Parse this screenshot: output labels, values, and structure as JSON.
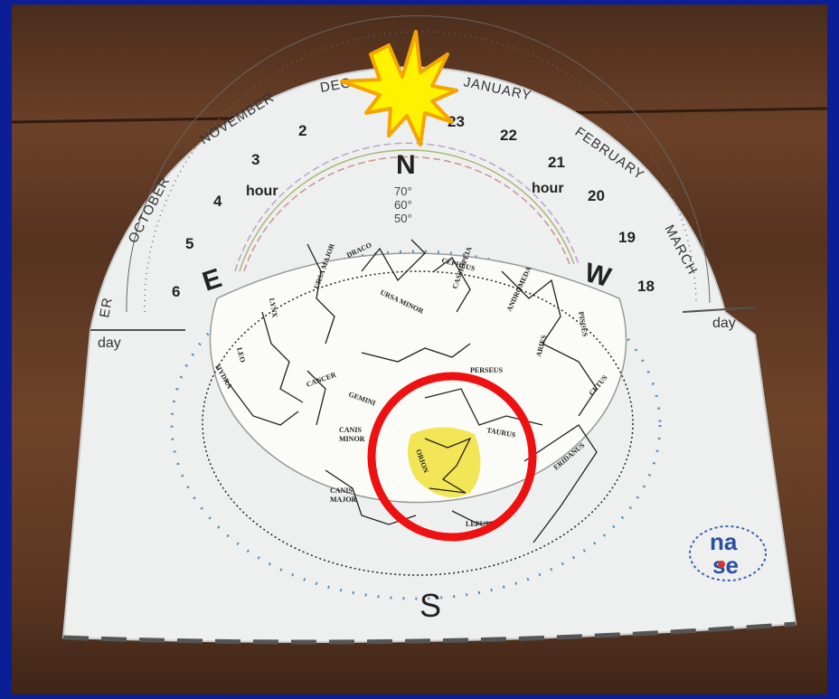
{
  "dial": {
    "months": [
      "ER",
      "OCTOBER",
      "NOVEMBER",
      "DEC",
      "JANUARY",
      "FEBRUARY",
      "MARCH"
    ],
    "hours_left": [
      "2",
      "3",
      "4",
      "5",
      "6"
    ],
    "hours_right": [
      "23",
      "22",
      "21",
      "20",
      "19",
      "18"
    ],
    "hour_labels": [
      "hour",
      "hour"
    ],
    "day_labels": [
      "day",
      "day"
    ],
    "altitudes": [
      "70°",
      "60°",
      "50°"
    ]
  },
  "compass": {
    "north": "N",
    "east": "E",
    "west": "W",
    "south": "S"
  },
  "constellations": [
    "URSA MAJOR",
    "DRACO",
    "URSA MINOR",
    "CEPHEUS",
    "CASSIOPEIA",
    "ANDROMEDA",
    "PISCES",
    "LYNX",
    "LEO",
    "HYDRA",
    "CANCER",
    "GEMINI",
    "PERSEUS",
    "ARIES",
    "CETUS",
    "TAURUS",
    "CANIS",
    "MINOR",
    "ORION",
    "ERIDANUS",
    "CANIS",
    "MAJOR",
    "LEPUS"
  ],
  "logo": [
    "na",
    "se"
  ]
}
